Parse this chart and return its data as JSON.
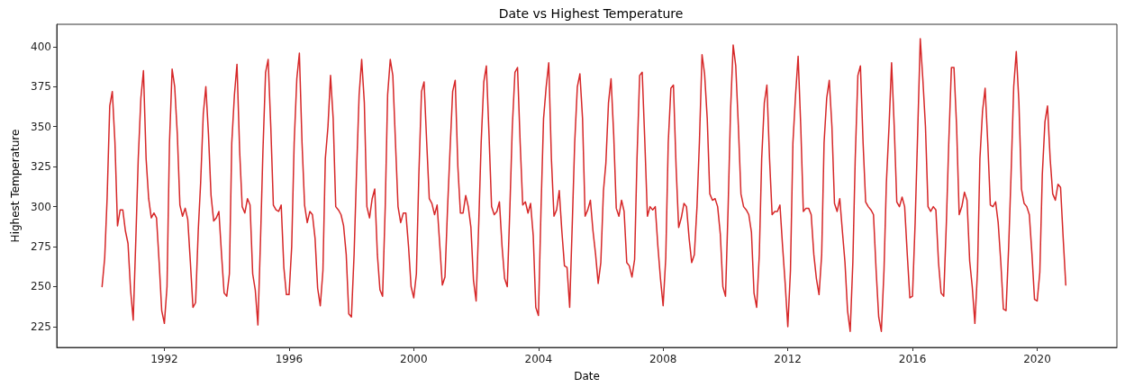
{
  "chart_data": {
    "type": "line",
    "title": "Date vs Highest Temperature",
    "xlabel": "Date",
    "ylabel": "Highest Temperature",
    "x": [
      "1990-01",
      "1990-02",
      "1990-03",
      "1990-04",
      "1990-05",
      "1990-06",
      "1990-07",
      "1990-08",
      "1990-09",
      "1990-10",
      "1990-11",
      "1990-12",
      "1991-01",
      "1991-02",
      "1991-03",
      "1991-04",
      "1991-05",
      "1991-06",
      "1991-07",
      "1991-08",
      "1991-09",
      "1991-10",
      "1991-11",
      "1991-12",
      "1992-01",
      "1992-02",
      "1992-03",
      "1992-04",
      "1992-05",
      "1992-06",
      "1992-07",
      "1992-08",
      "1992-09",
      "1992-10",
      "1992-11",
      "1992-12",
      "1993-01",
      "1993-02",
      "1993-03",
      "1993-04",
      "1993-05",
      "1993-06",
      "1993-07",
      "1993-08",
      "1993-09",
      "1993-10",
      "1993-11",
      "1993-12",
      "1994-01",
      "1994-02",
      "1994-03",
      "1994-04",
      "1994-05",
      "1994-06",
      "1994-07",
      "1994-08",
      "1994-09",
      "1994-10",
      "1994-11",
      "1994-12",
      "1995-01",
      "1995-02",
      "1995-03",
      "1995-04",
      "1995-05",
      "1995-06",
      "1995-07",
      "1995-08",
      "1995-09",
      "1995-10",
      "1995-11",
      "1995-12",
      "1996-01",
      "1996-02",
      "1996-03",
      "1996-04",
      "1996-05",
      "1996-06",
      "1996-07",
      "1996-08",
      "1996-09",
      "1996-10",
      "1996-11",
      "1996-12",
      "1997-01",
      "1997-02",
      "1997-03",
      "1997-04",
      "1997-05",
      "1997-06",
      "1997-07",
      "1997-08",
      "1997-09",
      "1997-10",
      "1997-11",
      "1997-12",
      "1998-01",
      "1998-02",
      "1998-03",
      "1998-04",
      "1998-05",
      "1998-06",
      "1998-07",
      "1998-08",
      "1998-09",
      "1998-10",
      "1998-11",
      "1998-12",
      "1999-01",
      "1999-02",
      "1999-03",
      "1999-04",
      "1999-05",
      "1999-06",
      "1999-07",
      "1999-08",
      "1999-09",
      "1999-10",
      "1999-11",
      "1999-12",
      "2000-01",
      "2000-02",
      "2000-03",
      "2000-04",
      "2000-05",
      "2000-06",
      "2000-07",
      "2000-08",
      "2000-09",
      "2000-10",
      "2000-11",
      "2000-12",
      "2001-01",
      "2001-02",
      "2001-03",
      "2001-04",
      "2001-05",
      "2001-06",
      "2001-07",
      "2001-08",
      "2001-09",
      "2001-10",
      "2001-11",
      "2001-12",
      "2002-01",
      "2002-02",
      "2002-03",
      "2002-04",
      "2002-05",
      "2002-06",
      "2002-07",
      "2002-08",
      "2002-09",
      "2002-10",
      "2002-11",
      "2002-12",
      "2003-01",
      "2003-02",
      "2003-03",
      "2003-04",
      "2003-05",
      "2003-06",
      "2003-07",
      "2003-08",
      "2003-09",
      "2003-10",
      "2003-11",
      "2003-12",
      "2004-01",
      "2004-02",
      "2004-03",
      "2004-04",
      "2004-05",
      "2004-06",
      "2004-07",
      "2004-08",
      "2004-09",
      "2004-10",
      "2004-11",
      "2004-12",
      "2005-01",
      "2005-02",
      "2005-03",
      "2005-04",
      "2005-05",
      "2005-06",
      "2005-07",
      "2005-08",
      "2005-09",
      "2005-10",
      "2005-11",
      "2005-12",
      "2006-01",
      "2006-02",
      "2006-03",
      "2006-04",
      "2006-05",
      "2006-06",
      "2006-07",
      "2006-08",
      "2006-09",
      "2006-10",
      "2006-11",
      "2006-12",
      "2007-01",
      "2007-02",
      "2007-03",
      "2007-04",
      "2007-05",
      "2007-06",
      "2007-07",
      "2007-08",
      "2007-09",
      "2007-10",
      "2007-11",
      "2007-12",
      "2008-01",
      "2008-02",
      "2008-03",
      "2008-04",
      "2008-05",
      "2008-06",
      "2008-07",
      "2008-08",
      "2008-09",
      "2008-10",
      "2008-11",
      "2008-12",
      "2009-01",
      "2009-02",
      "2009-03",
      "2009-04",
      "2009-05",
      "2009-06",
      "2009-07",
      "2009-08",
      "2009-09",
      "2009-10",
      "2009-11",
      "2009-12",
      "2010-01",
      "2010-02",
      "2010-03",
      "2010-04",
      "2010-05",
      "2010-06",
      "2010-07",
      "2010-08",
      "2010-09",
      "2010-10",
      "2010-11",
      "2010-12",
      "2011-01",
      "2011-02",
      "2011-03",
      "2011-04",
      "2011-05",
      "2011-06",
      "2011-07",
      "2011-08",
      "2011-09",
      "2011-10",
      "2011-11",
      "2011-12",
      "2012-01",
      "2012-02",
      "2012-03",
      "2012-04",
      "2012-05",
      "2012-06",
      "2012-07",
      "2012-08",
      "2012-09",
      "2012-10",
      "2012-11",
      "2012-12",
      "2013-01",
      "2013-02",
      "2013-03",
      "2013-04",
      "2013-05",
      "2013-06",
      "2013-07",
      "2013-08",
      "2013-09",
      "2013-10",
      "2013-11",
      "2013-12",
      "2014-01",
      "2014-02",
      "2014-03",
      "2014-04",
      "2014-05",
      "2014-06",
      "2014-07",
      "2014-08",
      "2014-09",
      "2014-10",
      "2014-11",
      "2014-12",
      "2015-01",
      "2015-02",
      "2015-03",
      "2015-04",
      "2015-05",
      "2015-06",
      "2015-07",
      "2015-08",
      "2015-09",
      "2015-10",
      "2015-11",
      "2015-12",
      "2016-01",
      "2016-02",
      "2016-03",
      "2016-04",
      "2016-05",
      "2016-06",
      "2016-07",
      "2016-08",
      "2016-09",
      "2016-10",
      "2016-11",
      "2016-12",
      "2017-01",
      "2017-02",
      "2017-03",
      "2017-04",
      "2017-05",
      "2017-06",
      "2017-07",
      "2017-08",
      "2017-09",
      "2017-10",
      "2017-11",
      "2017-12",
      "2018-01",
      "2018-02",
      "2018-03",
      "2018-04",
      "2018-05",
      "2018-06",
      "2018-07",
      "2018-08",
      "2018-09",
      "2018-10",
      "2018-11",
      "2018-12",
      "2019-01",
      "2019-02",
      "2019-03",
      "2019-04",
      "2019-05",
      "2019-06",
      "2019-07",
      "2019-08",
      "2019-09",
      "2019-10",
      "2019-11",
      "2019-12",
      "2020-01",
      "2020-02",
      "2020-03",
      "2020-04",
      "2020-05",
      "2020-06",
      "2020-07",
      "2020-08",
      "2020-09",
      "2020-10",
      "2020-11",
      "2020-12"
    ],
    "series": [
      {
        "color": "#d62728",
        "values": [
          250,
          268,
          305,
          363,
          372,
          340,
          288,
          298,
          298,
          285,
          277,
          248,
          229,
          280,
          330,
          368,
          385,
          330,
          305,
          293,
          296,
          293,
          265,
          235,
          227,
          250,
          340,
          386,
          375,
          345,
          301,
          294,
          299,
          292,
          265,
          237,
          240,
          285,
          315,
          358,
          375,
          345,
          307,
          291,
          293,
          297,
          270,
          246,
          244,
          258,
          340,
          370,
          389,
          335,
          300,
          296,
          305,
          301,
          258,
          248,
          226,
          280,
          335,
          384,
          392,
          350,
          301,
          298,
          297,
          301,
          262,
          245,
          245,
          275,
          340,
          380,
          396,
          340,
          301,
          290,
          297,
          295,
          280,
          249,
          238,
          260,
          330,
          350,
          382,
          355,
          300,
          298,
          295,
          288,
          270,
          233,
          231,
          270,
          320,
          370,
          392,
          365,
          300,
          293,
          305,
          311,
          270,
          248,
          244,
          300,
          370,
          392,
          382,
          340,
          300,
          290,
          296,
          296,
          275,
          250,
          243,
          258,
          320,
          372,
          378,
          340,
          305,
          302,
          295,
          301,
          276,
          251,
          256,
          300,
          335,
          372,
          379,
          325,
          296,
          296,
          307,
          300,
          287,
          254,
          241,
          290,
          340,
          378,
          388,
          345,
          300,
          295,
          297,
          303,
          275,
          255,
          250,
          300,
          350,
          384,
          387,
          340,
          301,
          303,
          296,
          302,
          282,
          237,
          232,
          300,
          355,
          375,
          390,
          330,
          294,
          298,
          310,
          285,
          263,
          262,
          237,
          290,
          340,
          375,
          383,
          355,
          294,
          298,
          304,
          285,
          270,
          252,
          265,
          310,
          327,
          365,
          380,
          345,
          299,
          294,
          304,
          297,
          265,
          263,
          256,
          267,
          330,
          382,
          384,
          340,
          294,
          300,
          298,
          300,
          275,
          255,
          238,
          268,
          340,
          374,
          376,
          325,
          287,
          293,
          302,
          300,
          280,
          265,
          270,
          300,
          340,
          395,
          383,
          355,
          308,
          304,
          305,
          300,
          283,
          250,
          244,
          300,
          360,
          401,
          388,
          350,
          308,
          300,
          298,
          295,
          284,
          246,
          237,
          270,
          330,
          365,
          376,
          330,
          295,
          297,
          297,
          301,
          275,
          252,
          225,
          260,
          340,
          370,
          394,
          350,
          297,
          299,
          299,
          295,
          270,
          255,
          245,
          270,
          340,
          368,
          379,
          350,
          302,
          297,
          305,
          285,
          265,
          235,
          222,
          265,
          330,
          382,
          388,
          340,
          303,
          300,
          298,
          295,
          260,
          231,
          222,
          260,
          315,
          350,
          390,
          350,
          303,
          300,
          306,
          300,
          270,
          243,
          244,
          290,
          345,
          405,
          380,
          350,
          300,
          297,
          300,
          298,
          265,
          246,
          244,
          290,
          340,
          387,
          387,
          350,
          295,
          300,
          309,
          304,
          266,
          250,
          227,
          260,
          330,
          360,
          374,
          340,
          301,
          300,
          303,
          290,
          265,
          236,
          235,
          275,
          320,
          375,
          397,
          365,
          311,
          302,
          300,
          295,
          270,
          242,
          241,
          259,
          320,
          353,
          363,
          330,
          308,
          304,
          314,
          312,
          280,
          251
        ]
      }
    ],
    "xlim": [
      "1988-07-19",
      "2022-07-23"
    ],
    "xticks": [
      "1992",
      "1996",
      "2000",
      "2004",
      "2008",
      "2012",
      "2016",
      "2020"
    ],
    "ylim": [
      212,
      414
    ],
    "yticks": [
      225,
      250,
      275,
      300,
      325,
      350,
      375,
      400
    ],
    "grid": false,
    "marker": "none",
    "line_style": "solid"
  }
}
